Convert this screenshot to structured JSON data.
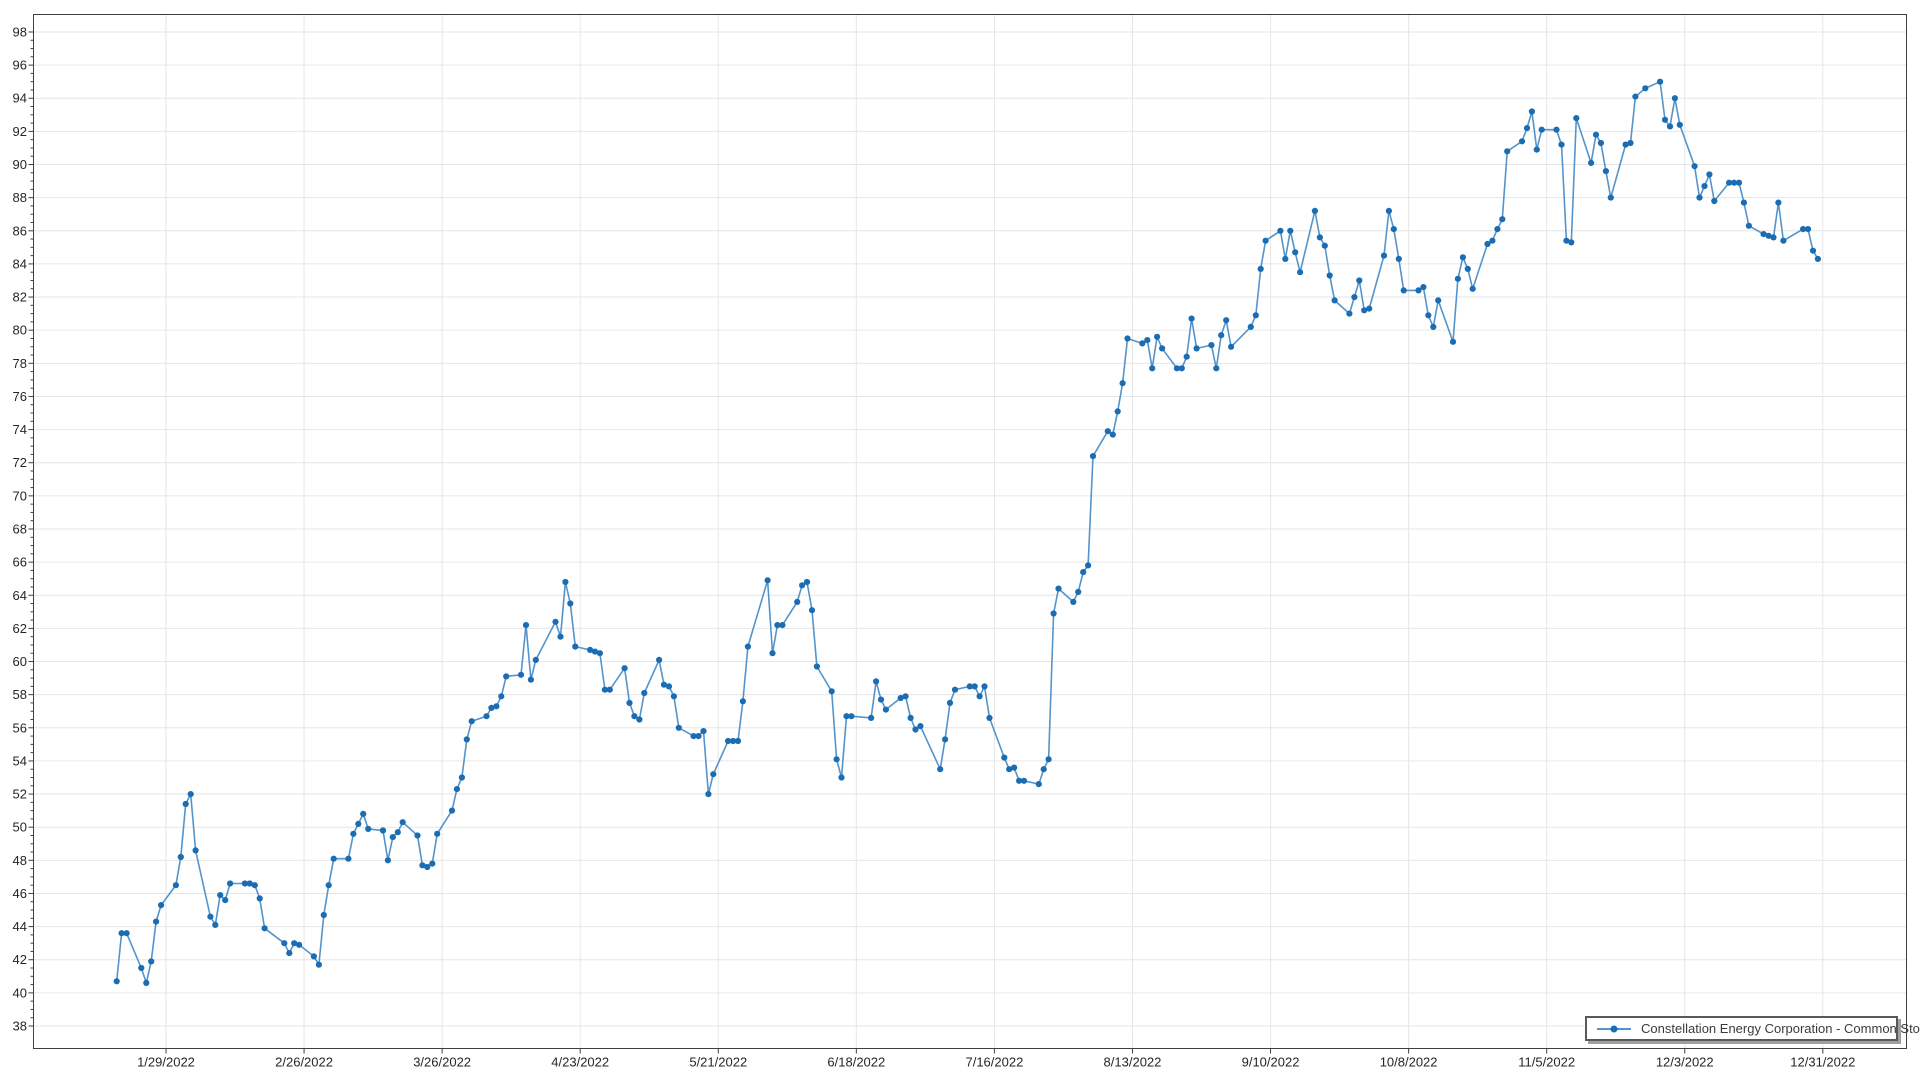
{
  "window": {
    "background_color": "#ffffff"
  },
  "chart_data": {
    "type": "line",
    "title": "",
    "xlabel": "",
    "ylabel": "",
    "grid": true,
    "legend_position": "bottom-right",
    "legend": {
      "label": "Constellation Energy Corporation - Common Stock",
      "marker_icon": "line-with-dot-icon"
    },
    "colors": {
      "line": "#5494cb",
      "marker": "#1b6db3",
      "grid": "#e6e6e6",
      "axis": "#3f3f3f",
      "tick_label": "#262626",
      "plot_background": "#ffffff"
    },
    "y_axis": {
      "min_label": 38,
      "max_label": 98,
      "major_step": 2,
      "minor_step": 0.5
    },
    "x_ticks": [
      {
        "label": "1/29/2022",
        "date": "2022-01-29"
      },
      {
        "label": "2/26/2022",
        "date": "2022-02-26"
      },
      {
        "label": "3/26/2022",
        "date": "2022-03-26"
      },
      {
        "label": "4/23/2022",
        "date": "2022-04-23"
      },
      {
        "label": "5/21/2022",
        "date": "2022-05-21"
      },
      {
        "label": "6/18/2022",
        "date": "2022-06-18"
      },
      {
        "label": "7/16/2022",
        "date": "2022-07-16"
      },
      {
        "label": "8/13/2022",
        "date": "2022-08-13"
      },
      {
        "label": "9/10/2022",
        "date": "2022-09-10"
      },
      {
        "label": "10/8/2022",
        "date": "2022-10-08"
      },
      {
        "label": "11/5/2022",
        "date": "2022-11-05"
      },
      {
        "label": "12/3/2022",
        "date": "2022-12-03"
      },
      {
        "label": "12/31/2022",
        "date": "2022-12-31"
      }
    ],
    "series": [
      {
        "name": "Constellation Energy Corporation - Common Stock",
        "dates": [
          "2022-01-19",
          "2022-01-20",
          "2022-01-21",
          "2022-01-24",
          "2022-01-25",
          "2022-01-26",
          "2022-01-27",
          "2022-01-28",
          "2022-01-31",
          "2022-02-01",
          "2022-02-02",
          "2022-02-03",
          "2022-02-04",
          "2022-02-07",
          "2022-02-08",
          "2022-02-09",
          "2022-02-10",
          "2022-02-11",
          "2022-02-14",
          "2022-02-15",
          "2022-02-16",
          "2022-02-17",
          "2022-02-18",
          "2022-02-22",
          "2022-02-23",
          "2022-02-24",
          "2022-02-25",
          "2022-02-28",
          "2022-03-01",
          "2022-03-02",
          "2022-03-03",
          "2022-03-04",
          "2022-03-07",
          "2022-03-08",
          "2022-03-09",
          "2022-03-10",
          "2022-03-11",
          "2022-03-14",
          "2022-03-15",
          "2022-03-16",
          "2022-03-17",
          "2022-03-18",
          "2022-03-21",
          "2022-03-22",
          "2022-03-23",
          "2022-03-24",
          "2022-03-25",
          "2022-03-28",
          "2022-03-29",
          "2022-03-30",
          "2022-03-31",
          "2022-04-01",
          "2022-04-04",
          "2022-04-05",
          "2022-04-06",
          "2022-04-07",
          "2022-04-08",
          "2022-04-11",
          "2022-04-12",
          "2022-04-13",
          "2022-04-14",
          "2022-04-18",
          "2022-04-19",
          "2022-04-20",
          "2022-04-21",
          "2022-04-22",
          "2022-04-25",
          "2022-04-26",
          "2022-04-27",
          "2022-04-28",
          "2022-04-29",
          "2022-05-02",
          "2022-05-03",
          "2022-05-04",
          "2022-05-05",
          "2022-05-06",
          "2022-05-09",
          "2022-05-10",
          "2022-05-11",
          "2022-05-12",
          "2022-05-13",
          "2022-05-16",
          "2022-05-17",
          "2022-05-18",
          "2022-05-19",
          "2022-05-20",
          "2022-05-23",
          "2022-05-24",
          "2022-05-25",
          "2022-05-26",
          "2022-05-27",
          "2022-05-31",
          "2022-06-01",
          "2022-06-02",
          "2022-06-03",
          "2022-06-06",
          "2022-06-07",
          "2022-06-08",
          "2022-06-09",
          "2022-06-10",
          "2022-06-13",
          "2022-06-14",
          "2022-06-15",
          "2022-06-16",
          "2022-06-17",
          "2022-06-21",
          "2022-06-22",
          "2022-06-23",
          "2022-06-24",
          "2022-06-27",
          "2022-06-28",
          "2022-06-29",
          "2022-06-30",
          "2022-07-01",
          "2022-07-05",
          "2022-07-06",
          "2022-07-07",
          "2022-07-08",
          "2022-07-11",
          "2022-07-12",
          "2022-07-13",
          "2022-07-14",
          "2022-07-15",
          "2022-07-18",
          "2022-07-19",
          "2022-07-20",
          "2022-07-21",
          "2022-07-22",
          "2022-07-25",
          "2022-07-26",
          "2022-07-27",
          "2022-07-28",
          "2022-07-29",
          "2022-08-01",
          "2022-08-02",
          "2022-08-03",
          "2022-08-04",
          "2022-08-05",
          "2022-08-08",
          "2022-08-09",
          "2022-08-10",
          "2022-08-11",
          "2022-08-12",
          "2022-08-15",
          "2022-08-16",
          "2022-08-17",
          "2022-08-18",
          "2022-08-19",
          "2022-08-22",
          "2022-08-23",
          "2022-08-24",
          "2022-08-25",
          "2022-08-26",
          "2022-08-29",
          "2022-08-30",
          "2022-08-31",
          "2022-09-01",
          "2022-09-02",
          "2022-09-06",
          "2022-09-07",
          "2022-09-08",
          "2022-09-09",
          "2022-09-12",
          "2022-09-13",
          "2022-09-14",
          "2022-09-15",
          "2022-09-16",
          "2022-09-19",
          "2022-09-20",
          "2022-09-21",
          "2022-09-22",
          "2022-09-23",
          "2022-09-26",
          "2022-09-27",
          "2022-09-28",
          "2022-09-29",
          "2022-09-30",
          "2022-10-03",
          "2022-10-04",
          "2022-10-05",
          "2022-10-06",
          "2022-10-07",
          "2022-10-10",
          "2022-10-11",
          "2022-10-12",
          "2022-10-13",
          "2022-10-14",
          "2022-10-17",
          "2022-10-18",
          "2022-10-19",
          "2022-10-20",
          "2022-10-21",
          "2022-10-24",
          "2022-10-25",
          "2022-10-26",
          "2022-10-27",
          "2022-10-28",
          "2022-10-31",
          "2022-11-01",
          "2022-11-02",
          "2022-11-03",
          "2022-11-04",
          "2022-11-07",
          "2022-11-08",
          "2022-11-09",
          "2022-11-10",
          "2022-11-11",
          "2022-11-14",
          "2022-11-15",
          "2022-11-16",
          "2022-11-17",
          "2022-11-18",
          "2022-11-21",
          "2022-11-22",
          "2022-11-23",
          "2022-11-25",
          "2022-11-28",
          "2022-11-29",
          "2022-11-30",
          "2022-12-01",
          "2022-12-02",
          "2022-12-05",
          "2022-12-06",
          "2022-12-07",
          "2022-12-08",
          "2022-12-09",
          "2022-12-12",
          "2022-12-13",
          "2022-12-14",
          "2022-12-15",
          "2022-12-16",
          "2022-12-19",
          "2022-12-20",
          "2022-12-21",
          "2022-12-22",
          "2022-12-23",
          "2022-12-27",
          "2022-12-28",
          "2022-12-29",
          "2022-12-30"
        ],
        "closes": [
          40.7,
          43.6,
          43.6,
          41.5,
          40.6,
          41.9,
          44.3,
          45.3,
          46.5,
          48.2,
          51.4,
          52.0,
          48.6,
          44.6,
          44.1,
          45.9,
          45.6,
          46.6,
          46.6,
          46.6,
          46.5,
          45.7,
          43.9,
          43.0,
          42.4,
          43.0,
          42.9,
          42.2,
          41.7,
          44.7,
          46.5,
          48.1,
          48.1,
          49.6,
          50.2,
          50.8,
          49.9,
          49.8,
          48.0,
          49.4,
          49.7,
          50.3,
          49.5,
          47.7,
          47.6,
          47.8,
          49.6,
          51.0,
          52.3,
          53.0,
          55.3,
          56.4,
          56.7,
          57.2,
          57.3,
          57.9,
          59.1,
          59.2,
          62.2,
          58.9,
          60.1,
          62.4,
          61.5,
          64.8,
          63.5,
          60.9,
          60.7,
          60.6,
          60.5,
          58.3,
          58.3,
          59.6,
          57.5,
          56.7,
          56.5,
          58.1,
          60.1,
          58.6,
          58.5,
          57.9,
          56.0,
          55.5,
          55.5,
          55.8,
          52.0,
          53.2,
          55.2,
          55.2,
          55.2,
          57.6,
          60.9,
          64.9,
          60.5,
          62.2,
          62.2,
          63.6,
          64.6,
          64.8,
          63.1,
          59.7,
          58.2,
          54.1,
          53.0,
          56.7,
          56.7,
          56.6,
          58.8,
          57.7,
          57.1,
          57.8,
          57.9,
          56.6,
          55.9,
          56.1,
          53.5,
          55.3,
          57.5,
          58.3,
          58.5,
          58.5,
          57.9,
          58.5,
          56.6,
          54.2,
          53.5,
          53.6,
          52.8,
          52.8,
          52.6,
          53.5,
          54.1,
          62.9,
          64.4,
          63.6,
          64.2,
          65.4,
          65.8,
          72.4,
          73.9,
          73.7,
          75.1,
          76.8,
          79.5,
          79.2,
          79.4,
          77.7,
          79.6,
          78.9,
          77.7,
          77.7,
          78.4,
          80.7,
          78.9,
          79.1,
          77.7,
          79.7,
          80.6,
          79.0,
          80.2,
          80.9,
          83.7,
          85.4,
          86.0,
          84.3,
          86.0,
          84.7,
          83.5,
          87.2,
          85.6,
          85.1,
          83.3,
          81.8,
          81.0,
          82.0,
          83.0,
          81.2,
          81.3,
          84.5,
          87.2,
          86.1,
          84.3,
          82.4,
          82.4,
          82.6,
          80.9,
          80.2,
          81.8,
          79.3,
          83.1,
          84.4,
          83.7,
          82.5,
          85.2,
          85.4,
          86.1,
          86.7,
          90.8,
          91.4,
          92.2,
          93.2,
          90.9,
          92.1,
          92.1,
          91.2,
          85.4,
          85.3,
          92.8,
          90.1,
          91.8,
          91.3,
          89.6,
          88.0,
          91.2,
          91.3,
          94.1,
          94.6,
          95.0,
          92.7,
          92.3,
          94.0,
          92.4,
          89.9,
          88.0,
          88.7,
          89.4,
          87.8,
          88.9,
          88.9,
          88.9,
          87.7,
          86.3,
          85.8,
          85.7,
          85.6,
          87.7,
          85.4,
          86.1,
          86.1,
          84.8,
          84.3
        ]
      }
    ]
  }
}
